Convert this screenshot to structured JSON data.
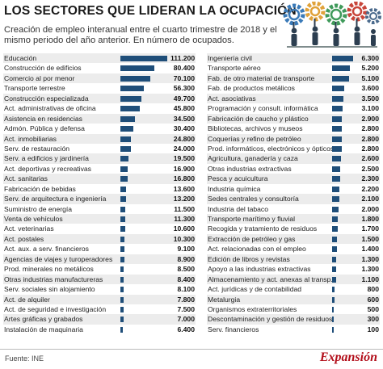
{
  "title": "LOS SECTORES QUE LIDERAN LA OCUPACIÓN",
  "subtitle": "Creación de empleo interanual entre el cuarto trimestre de 2018 y el mismo periodo del año anterior. En número de ocupados.",
  "source": "Fuente: INE",
  "brand": "Expansión",
  "colors": {
    "bar": "#1f4e79",
    "row_alt": "#ececec",
    "brand": "#b20e1a"
  },
  "chart_data": [
    {
      "type": "bar",
      "orientation": "horizontal",
      "categories": [
        "Educación",
        "Construcción de edificios",
        "Comercio al por menor",
        "Transporte terrestre",
        "Construcción especializada",
        "Act. administrativas de oficina",
        "Asistencia en residencias",
        "Admón. Pública y defensa",
        "Act. inmobiliarias",
        "Serv. de restauración",
        "Serv. a edificios y jardinería",
        "Act. deportivas y recreativas",
        "Act. sanitarias",
        "Fabricación de bebidas",
        "Serv. de arquitectura e ingeniería",
        "Suministro de energía",
        "Venta de vehículos",
        "Act. veterinarias",
        "Act. postales",
        "Act. aux. a serv. financieros",
        "Agencias de viajes y turoperadores",
        "Prod. minerales no metálicos",
        "Otras industrias manufactureras",
        "Serv. sociales sin alojamiento",
        "Act. de alquiler",
        "Act. de seguridad e investigación",
        "Artes gráficas y grabados",
        "Instalación de maquinaria"
      ],
      "values": [
        111200,
        80400,
        70100,
        56300,
        49700,
        45800,
        34500,
        30400,
        24800,
        24000,
        19500,
        16900,
        16800,
        13600,
        13200,
        11500,
        11300,
        10600,
        10300,
        9100,
        8900,
        8500,
        8400,
        8100,
        7800,
        7500,
        7000,
        6400
      ],
      "value_labels": [
        "111.200",
        "80.400",
        "70.100",
        "56.300",
        "49.700",
        "45.800",
        "34.500",
        "30.400",
        "24.800",
        "24.000",
        "19.500",
        "16.900",
        "16.800",
        "13.600",
        "13.200",
        "11.500",
        "11.300",
        "10.600",
        "10.300",
        "9.100",
        "8.900",
        "8.500",
        "8.400",
        "8.100",
        "7.800",
        "7.500",
        "7.000",
        "6.400"
      ]
    },
    {
      "type": "bar",
      "orientation": "horizontal",
      "categories": [
        "Ingeniería civil",
        "Transporte aéreo",
        "Fab. de otro material de transporte",
        "Fab. de productos metálicos",
        "Act. asociativas",
        "Programación y consult. informática",
        "Fabricación de caucho y plástico",
        "Bibliotecas, archivos y museos",
        "Coquerías y refino de petróleo",
        "Prod. informáticos, electrónicos y ópticos",
        "Agricultura, ganadería y caza",
        "Otras industrias extractivas",
        "Pesca y acuicultura",
        "Industria química",
        "Sedes centrales y consultoría",
        "Industria del tabaco",
        "Transporte marítimo y fluvial",
        "Recogida y tratamiento de residuos",
        "Extracción de petróleo y gas",
        "Act. relacionadas con el empleo",
        "Edición de libros y revistas",
        "Apoyo a las industrias extractivas",
        "Almacenamiento y act. anexas al transp.",
        "Act. jurídicas y de contabilidad",
        "Metalurgia",
        "Organismos extraterritoriales",
        "Descontaminación y gestión de residuos",
        "Serv. financieros"
      ],
      "values": [
        6300,
        5200,
        5100,
        3600,
        3500,
        3100,
        2900,
        2800,
        2800,
        2800,
        2600,
        2500,
        2300,
        2200,
        2100,
        2000,
        1800,
        1700,
        1500,
        1400,
        1300,
        1300,
        1100,
        800,
        600,
        500,
        300,
        100
      ],
      "value_labels": [
        "6.300",
        "5.200",
        "5.100",
        "3.600",
        "3.500",
        "3.100",
        "2.900",
        "2.800",
        "2.800",
        "2.800",
        "2.600",
        "2.500",
        "2.300",
        "2.200",
        "2.100",
        "2.000",
        "1.800",
        "1.700",
        "1.500",
        "1.400",
        "1.300",
        "1.300",
        "1.100",
        "800",
        "600",
        "500",
        "300",
        "100"
      ]
    }
  ]
}
